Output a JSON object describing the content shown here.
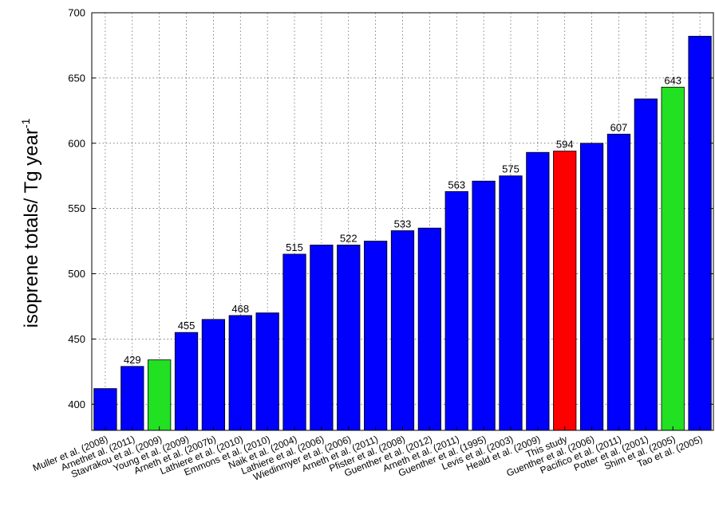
{
  "chart_data": {
    "type": "bar",
    "title": "",
    "xlabel": "",
    "ylabel": "isoprene totals/ Tg year",
    "ylabel_superscript": "-1",
    "ylim": [
      380,
      700
    ],
    "yticks": [
      400,
      450,
      500,
      550,
      600,
      650,
      700
    ],
    "grid": true,
    "categories": [
      "Muller et al. (2008)",
      "Arnethet al. (2011)",
      "Stavrakou et al. (2009)",
      "Young et al. (2009)",
      "Arneth et al. (2007b)",
      "Lathiere et al. (2010)",
      "Emmons et al. (2010)",
      "Naik et al. (2004)",
      "Lathiere et al. (2006)",
      "Wiedinmyer et al. (2006)",
      "Arneth et al. (2011)",
      "Pfister et al. (2008)",
      "Guenther et al. (2012)",
      "Arneth et al. (2011)",
      "Guenther et al. (1995)",
      "Levis et al. (2003)",
      "Heald et al. (2009)",
      "This study",
      "Guenther et al. (2006)",
      "Pacifico et al. (2011)",
      "Potter et al. (2001)",
      "Shim et al. (2005)",
      "Tao et al. (2005)"
    ],
    "values": [
      412,
      429,
      434,
      455,
      465,
      468,
      470,
      515,
      522,
      522,
      525,
      533,
      535,
      563,
      571,
      575,
      593,
      594,
      600,
      607,
      634,
      643,
      682
    ],
    "bar_colors": [
      "#0000ff",
      "#0000ff",
      "#22e022",
      "#0000ff",
      "#0000ff",
      "#0000ff",
      "#0000ff",
      "#0000ff",
      "#0000ff",
      "#0000ff",
      "#0000ff",
      "#0000ff",
      "#0000ff",
      "#0000ff",
      "#0000ff",
      "#0000ff",
      "#0000ff",
      "#ff0000",
      "#0000ff",
      "#0000ff",
      "#0000ff",
      "#22e022",
      "#0000ff"
    ],
    "label_colors": [
      "#000000",
      "#000000",
      "#000000",
      "#000000",
      "#000000",
      "#000000",
      "#000000",
      "#000000",
      "#000000",
      "#000000",
      "#000000",
      "#000000",
      "#000000",
      "#000000",
      "#000000",
      "#000000",
      "#000000",
      "#ff0000",
      "#000000",
      "#000000",
      "#000000",
      "#000000",
      "#000000"
    ],
    "data_labels": [
      "",
      "429",
      "",
      "455",
      "",
      "468",
      "",
      "515",
      "",
      "522",
      "",
      "533",
      "",
      "563",
      "",
      "575",
      "",
      "594",
      "",
      "607",
      "",
      "643",
      ""
    ]
  }
}
